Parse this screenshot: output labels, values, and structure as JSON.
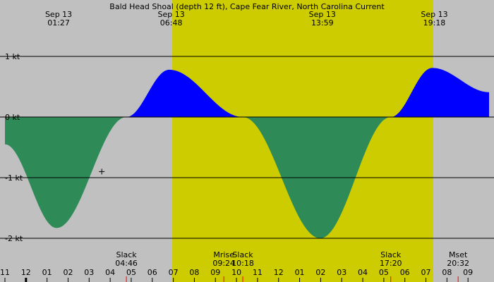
{
  "chart_data": {
    "type": "area",
    "title": "Bald Head Shoal (depth 12 ft), Cape Fear River, North Carolina Current",
    "ylabel_unit": "kt",
    "y_ticks": [
      {
        "value": 1,
        "label": "1 kt"
      },
      {
        "value": 0,
        "label": "0 kt"
      },
      {
        "value": -1,
        "label": "-1 kt"
      },
      {
        "value": -2,
        "label": "-2 kt"
      }
    ],
    "ylim": [
      -2.45,
      1.85
    ],
    "xlim_hours": [
      -1.0,
      22.0
    ],
    "x_ticks": [
      {
        "h": -1,
        "label": "11"
      },
      {
        "h": 0,
        "label": "12"
      },
      {
        "h": 1,
        "label": "01"
      },
      {
        "h": 2,
        "label": "02"
      },
      {
        "h": 3,
        "label": "03"
      },
      {
        "h": 4,
        "label": "04"
      },
      {
        "h": 5,
        "label": "05"
      },
      {
        "h": 6,
        "label": "06"
      },
      {
        "h": 7,
        "label": "07"
      },
      {
        "h": 8,
        "label": "08"
      },
      {
        "h": 9,
        "label": "09"
      },
      {
        "h": 10,
        "label": "10"
      },
      {
        "h": 11,
        "label": "11"
      },
      {
        "h": 12,
        "label": "12"
      },
      {
        "h": 13,
        "label": "01"
      },
      {
        "h": 14,
        "label": "02"
      },
      {
        "h": 15,
        "label": "03"
      },
      {
        "h": 16,
        "label": "04"
      },
      {
        "h": 17,
        "label": "05"
      },
      {
        "h": 18,
        "label": "06"
      },
      {
        "h": 19,
        "label": "07"
      },
      {
        "h": 20,
        "label": "08"
      },
      {
        "h": 21,
        "label": "09"
      }
    ],
    "extremes": [
      {
        "date": "Sep 13",
        "time": "01:27",
        "h": 1.45,
        "value": -1.83
      },
      {
        "date": "Sep 13",
        "time": "06:48",
        "h": 6.8,
        "value": 0.78
      },
      {
        "date": "Sep 13",
        "time": "13:59",
        "h": 13.98,
        "value": -2.0
      },
      {
        "date": "Sep 13",
        "time": "19:18",
        "h": 19.3,
        "value": 0.81
      }
    ],
    "curve_points": [
      {
        "h": -1.0,
        "value": -0.45
      },
      {
        "h": 1.45,
        "value": -1.83
      },
      {
        "h": 4.77,
        "value": 0
      },
      {
        "h": 6.8,
        "value": 0.78
      },
      {
        "h": 10.3,
        "value": 0
      },
      {
        "h": 13.98,
        "value": -2.0
      },
      {
        "h": 17.33,
        "value": 0
      },
      {
        "h": 19.3,
        "value": 0.81
      },
      {
        "h": 22.0,
        "value": 0.41
      }
    ],
    "events": [
      {
        "name": "Slack",
        "time": "04:46",
        "h": 4.77
      },
      {
        "name": "Mrise",
        "time": "09:24",
        "h": 9.4
      },
      {
        "name": "Slack",
        "time": "10:18",
        "h": 10.3
      },
      {
        "name": "Slack",
        "time": "17:20",
        "h": 17.33
      },
      {
        "name": "Mset",
        "time": "20:32",
        "h": 20.53
      }
    ],
    "daylight_hours": [
      6.95,
      19.35
    ],
    "midnight_h": 0,
    "marker": {
      "h": 3.6,
      "value": -0.9
    },
    "colors": {
      "night": "#c0c0c0",
      "day": "#cccc00",
      "flood": "#0000ff",
      "ebb": "#2e8b57",
      "gridline": "#000000",
      "event_tick": "#ff0000"
    }
  }
}
